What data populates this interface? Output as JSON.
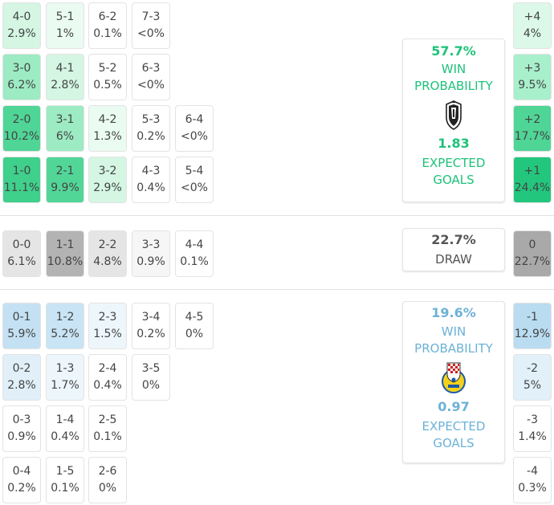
{
  "colors": {
    "home_accent": "#1ec27a",
    "away_accent": "#6cb2d6",
    "draw_accent": "#555555"
  },
  "home_scores": [
    [
      {
        "score": "4-0",
        "pct": "2.9%",
        "fill": "#d4f6e3"
      },
      {
        "score": "5-1",
        "pct": "1%",
        "fill": "#eafbf1"
      },
      {
        "score": "6-2",
        "pct": "0.1%",
        "fill": "#ffffff"
      },
      {
        "score": "7-3",
        "pct": "<0%",
        "fill": "#ffffff"
      }
    ],
    [
      {
        "score": "3-0",
        "pct": "6.2%",
        "fill": "#9cebc3"
      },
      {
        "score": "4-1",
        "pct": "2.8%",
        "fill": "#d4f6e3"
      },
      {
        "score": "5-2",
        "pct": "0.5%",
        "fill": "#ffffff"
      },
      {
        "score": "6-3",
        "pct": "<0%",
        "fill": "#ffffff"
      }
    ],
    [
      {
        "score": "2-0",
        "pct": "10.2%",
        "fill": "#4fd596"
      },
      {
        "score": "3-1",
        "pct": "6%",
        "fill": "#9cebc3"
      },
      {
        "score": "4-2",
        "pct": "1.3%",
        "fill": "#eafbf1"
      },
      {
        "score": "5-3",
        "pct": "0.2%",
        "fill": "#ffffff"
      },
      {
        "score": "6-4",
        "pct": "<0%",
        "fill": "#ffffff"
      }
    ],
    [
      {
        "score": "1-0",
        "pct": "11.1%",
        "fill": "#3fd08c"
      },
      {
        "score": "2-1",
        "pct": "9.9%",
        "fill": "#52d698"
      },
      {
        "score": "3-2",
        "pct": "2.9%",
        "fill": "#d4f6e3"
      },
      {
        "score": "4-3",
        "pct": "0.4%",
        "fill": "#ffffff"
      },
      {
        "score": "5-4",
        "pct": "<0%",
        "fill": "#ffffff"
      }
    ]
  ],
  "draw_scores": [
    {
      "score": "0-0",
      "pct": "6.1%",
      "fill": "#e5e5e5"
    },
    {
      "score": "1-1",
      "pct": "10.8%",
      "fill": "#b3b3b3"
    },
    {
      "score": "2-2",
      "pct": "4.8%",
      "fill": "#e5e5e5"
    },
    {
      "score": "3-3",
      "pct": "0.9%",
      "fill": "#f6f6f6"
    },
    {
      "score": "4-4",
      "pct": "0.1%",
      "fill": "#ffffff"
    }
  ],
  "away_scores": [
    [
      {
        "score": "0-1",
        "pct": "5.9%",
        "fill": "#c4e1f3"
      },
      {
        "score": "1-2",
        "pct": "5.2%",
        "fill": "#c9e4f4"
      },
      {
        "score": "2-3",
        "pct": "1.5%",
        "fill": "#edf6fb"
      },
      {
        "score": "3-4",
        "pct": "0.2%",
        "fill": "#ffffff"
      },
      {
        "score": "4-5",
        "pct": "0%",
        "fill": "#ffffff"
      }
    ],
    [
      {
        "score": "0-2",
        "pct": "2.8%",
        "fill": "#e0eff8"
      },
      {
        "score": "1-3",
        "pct": "1.7%",
        "fill": "#edf6fb"
      },
      {
        "score": "2-4",
        "pct": "0.4%",
        "fill": "#ffffff"
      },
      {
        "score": "3-5",
        "pct": "0%",
        "fill": "#ffffff"
      }
    ],
    [
      {
        "score": "0-3",
        "pct": "0.9%",
        "fill": "#ffffff"
      },
      {
        "score": "1-4",
        "pct": "0.4%",
        "fill": "#ffffff"
      },
      {
        "score": "2-5",
        "pct": "0.1%",
        "fill": "#ffffff"
      }
    ],
    [
      {
        "score": "0-4",
        "pct": "0.2%",
        "fill": "#ffffff"
      },
      {
        "score": "1-5",
        "pct": "0.1%",
        "fill": "#ffffff"
      },
      {
        "score": "2-6",
        "pct": "0%",
        "fill": "#ffffff"
      }
    ]
  ],
  "home_card": {
    "win_pct": "57.7%",
    "win_label_1": "WIN",
    "win_label_2": "PROBABILITY",
    "xg": "1.83",
    "xg_label_1": "EXPECTED",
    "xg_label_2": "GOALS",
    "crest_icon": "shield-crest-icon"
  },
  "draw_card": {
    "pct": "22.7%",
    "label": "DRAW"
  },
  "away_card": {
    "win_pct": "19.6%",
    "win_label_1": "WIN",
    "win_label_2": "PROBABILITY",
    "xg": "0.97",
    "xg_label_1": "EXPECTED",
    "xg_label_2": "GOALS",
    "crest_icon": "checkered-crest-icon"
  },
  "margins": [
    {
      "diff": "+4",
      "pct": "4%",
      "fill": "#dcf8e9"
    },
    {
      "diff": "+3",
      "pct": "9.5%",
      "fill": "#a8efcc"
    },
    {
      "diff": "+2",
      "pct": "17.7%",
      "fill": "#4fd596"
    },
    {
      "diff": "+1",
      "pct": "24.4%",
      "fill": "#22c77d"
    },
    {
      "diff": "0",
      "pct": "22.7%",
      "fill": "#a9a9a9"
    },
    {
      "diff": "-1",
      "pct": "12.9%",
      "fill": "#b9dcf1"
    },
    {
      "diff": "-2",
      "pct": "5%",
      "fill": "#e1f0f9"
    },
    {
      "diff": "-3",
      "pct": "1.4%",
      "fill": "#ffffff"
    },
    {
      "diff": "-4",
      "pct": "0.3%",
      "fill": "#ffffff"
    }
  ]
}
